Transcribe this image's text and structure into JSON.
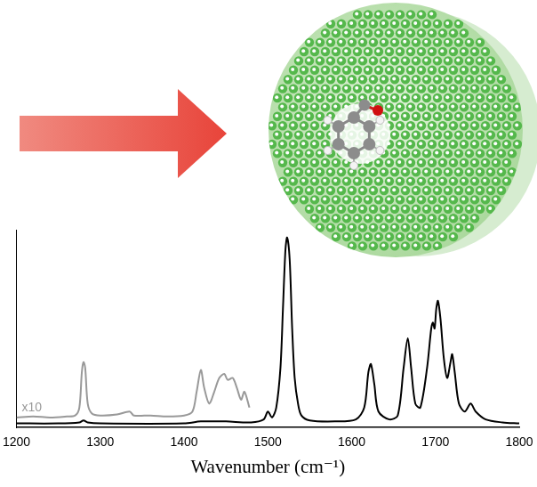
{
  "chart_data": {
    "type": "line",
    "x_label": "Wavenumber (cm⁻¹)",
    "xlim": [
      1200,
      1800
    ],
    "xticks": [
      1200,
      1300,
      1400,
      1500,
      1600,
      1700,
      1800
    ],
    "ylim": [
      0,
      1
    ],
    "grid": false,
    "tick_labels": "x",
    "annotations": [
      {
        "text": "x10",
        "color": "#999999"
      }
    ],
    "series": [
      {
        "color": "#000000",
        "x": [
          1200,
          1250,
          1275,
          1280,
          1285,
          1300,
          1400,
          1420,
          1450,
          1480,
          1495,
          1500,
          1505,
          1510,
          1515,
          1518,
          1521,
          1523,
          1526,
          1529,
          1532,
          1536,
          1540,
          1550,
          1580,
          1605,
          1615,
          1620,
          1623,
          1627,
          1632,
          1645,
          1655,
          1662,
          1667,
          1671,
          1676,
          1682,
          1690,
          1695,
          1697,
          1699,
          1701,
          1703,
          1706,
          1710,
          1714,
          1718,
          1720,
          1723,
          1728,
          1735,
          1742,
          1748,
          1760,
          1780,
          1800
        ],
        "values": [
          0.02,
          0.02,
          0.025,
          0.035,
          0.025,
          0.02,
          0.02,
          0.03,
          0.03,
          0.025,
          0.04,
          0.08,
          0.05,
          0.1,
          0.3,
          0.6,
          0.9,
          0.96,
          0.85,
          0.5,
          0.25,
          0.12,
          0.06,
          0.035,
          0.03,
          0.04,
          0.1,
          0.28,
          0.32,
          0.22,
          0.08,
          0.04,
          0.06,
          0.3,
          0.45,
          0.3,
          0.12,
          0.1,
          0.3,
          0.5,
          0.53,
          0.5,
          0.6,
          0.64,
          0.55,
          0.35,
          0.25,
          0.33,
          0.37,
          0.28,
          0.12,
          0.08,
          0.12,
          0.08,
          0.04,
          0.025,
          0.02
        ]
      },
      {
        "color": "#999999",
        "x": [
          1200,
          1220,
          1240,
          1260,
          1270,
          1275,
          1278,
          1280,
          1282,
          1285,
          1290,
          1300,
          1320,
          1335,
          1340,
          1360,
          1380,
          1400,
          1410,
          1415,
          1420,
          1424,
          1430,
          1436,
          1442,
          1448,
          1452,
          1458,
          1463,
          1468,
          1472,
          1478
        ],
        "values": [
          0.05,
          0.055,
          0.05,
          0.055,
          0.06,
          0.1,
          0.28,
          0.33,
          0.3,
          0.12,
          0.07,
          0.06,
          0.065,
          0.08,
          0.06,
          0.06,
          0.055,
          0.06,
          0.08,
          0.18,
          0.29,
          0.2,
          0.12,
          0.18,
          0.25,
          0.27,
          0.24,
          0.25,
          0.2,
          0.14,
          0.18,
          0.1
        ]
      }
    ]
  }
}
